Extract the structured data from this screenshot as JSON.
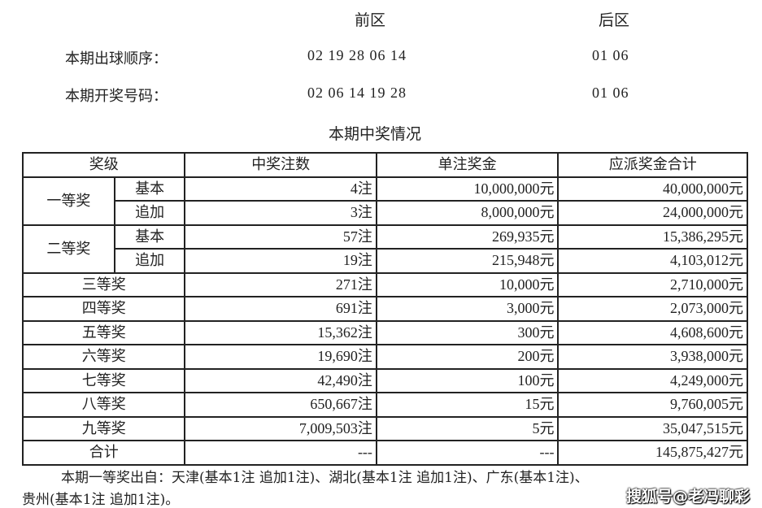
{
  "header": {
    "front_label": "前区",
    "back_label": "后区"
  },
  "draw_order": {
    "label": "本期出球顺序：",
    "front": "02 19 28 06 14",
    "back": "01 06"
  },
  "winning_numbers": {
    "label": "本期开奖号码：",
    "front": "02 06 14 19 28",
    "back": "01 06"
  },
  "table_title": "本期中奖情况",
  "table": {
    "columns": [
      "奖级",
      "中奖注数",
      "单注奖金",
      "应派奖金合计"
    ],
    "rows": [
      {
        "level": "一等奖",
        "sub": "基本",
        "count": "4注",
        "prize": "10,000,000元",
        "total": "40,000,000元"
      },
      {
        "level": "一等奖",
        "sub": "追加",
        "count": "3注",
        "prize": "8,000,000元",
        "total": "24,000,000元"
      },
      {
        "level": "二等奖",
        "sub": "基本",
        "count": "57注",
        "prize": "269,935元",
        "total": "15,386,295元"
      },
      {
        "level": "二等奖",
        "sub": "追加",
        "count": "19注",
        "prize": "215,948元",
        "total": "4,103,012元"
      },
      {
        "level": "三等奖",
        "count": "271注",
        "prize": "10,000元",
        "total": "2,710,000元"
      },
      {
        "level": "四等奖",
        "count": "691注",
        "prize": "3,000元",
        "total": "2,073,000元"
      },
      {
        "level": "五等奖",
        "count": "15,362注",
        "prize": "300元",
        "total": "4,608,600元"
      },
      {
        "level": "六等奖",
        "count": "19,690注",
        "prize": "200元",
        "total": "3,938,000元"
      },
      {
        "level": "七等奖",
        "count": "42,490注",
        "prize": "100元",
        "total": "4,249,000元"
      },
      {
        "level": "八等奖",
        "count": "650,667注",
        "prize": "15元",
        "total": "9,760,005元"
      },
      {
        "level": "九等奖",
        "count": "7,009,503注",
        "prize": "5元",
        "total": "35,047,515元"
      },
      {
        "level": "合计",
        "count": "---",
        "prize": "---",
        "total": "145,875,427元"
      }
    ]
  },
  "footer": {
    "line1": "本期一等奖出自：天津(基本1注 追加1注)、湖北(基本1注 追加1注)、广东(基本1注)、",
    "line2": "贵州(基本1注 追加1注)。"
  },
  "watermark": "搜狐号@老冯聊彩"
}
